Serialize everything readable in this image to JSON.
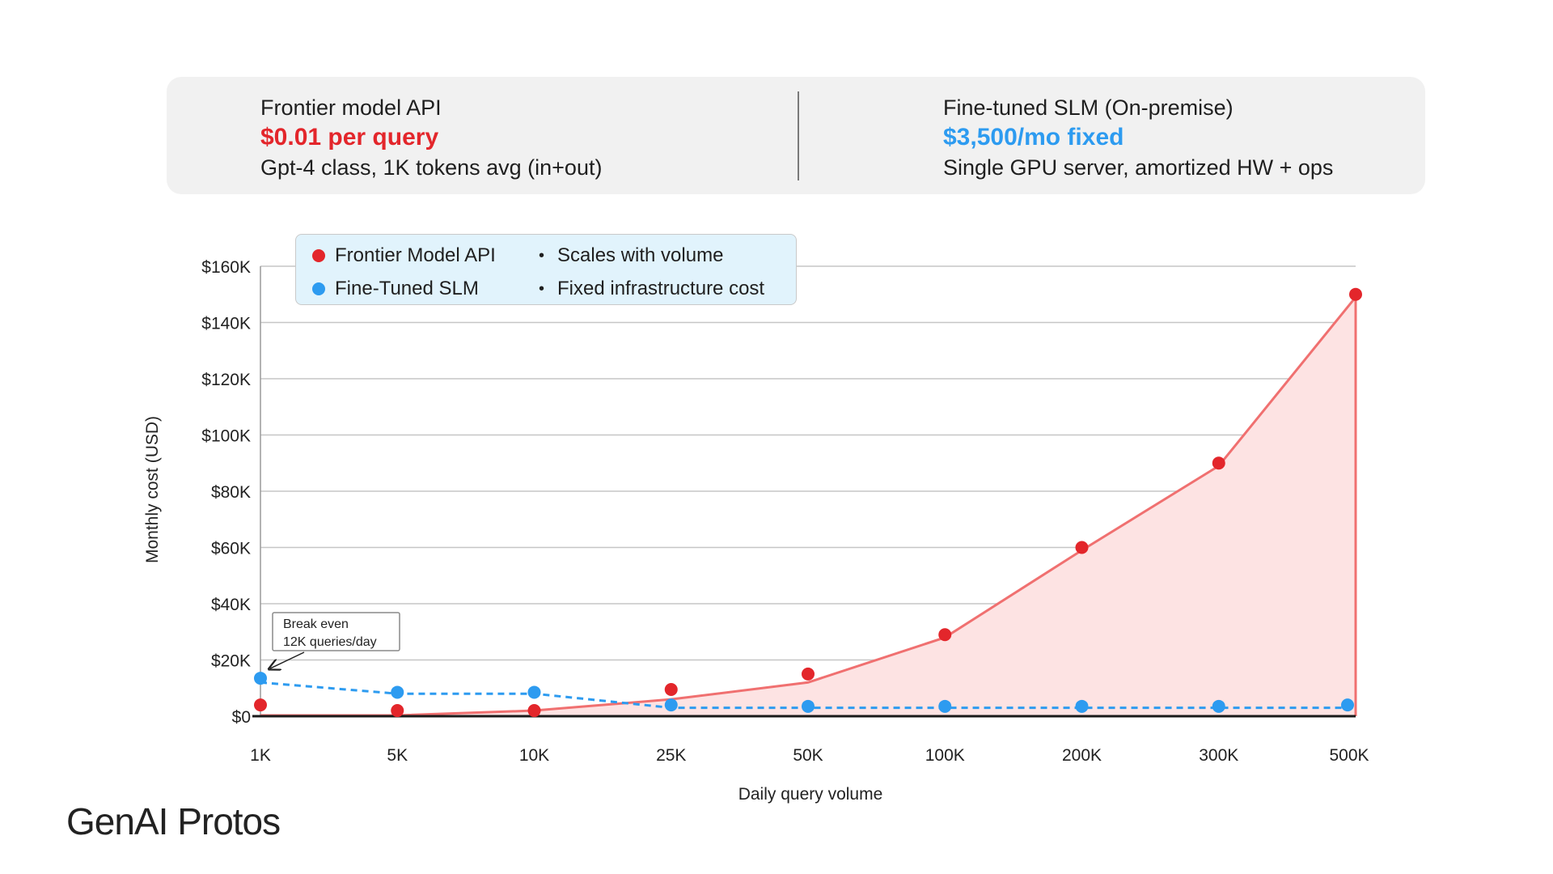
{
  "info_panel": {
    "left": {
      "title": "Frontier model API",
      "price": "$0.01 per query",
      "desc": "Gpt-4 class, 1K tokens avg (in+out)"
    },
    "right": {
      "title": "Fine-tuned SLM (On-premise)",
      "price": "$3,500/mo fixed",
      "desc": "Single GPU server, amortized HW + ops"
    }
  },
  "legend": {
    "items": [
      {
        "label": "Frontier Model API",
        "note": "Scales with volume",
        "color": "#e3262b"
      },
      {
        "label": "Fine-Tuned SLM",
        "note": "Fixed infrastructure cost",
        "color": "#2d9bf0"
      }
    ],
    "bullet": "•"
  },
  "chart_data": {
    "type": "line",
    "xlabel": "Daily query volume",
    "ylabel": "Monthly cost (USD)",
    "categories": [
      "1K",
      "5K",
      "10K",
      "25K",
      "50K",
      "100K",
      "200K",
      "300K",
      "500K"
    ],
    "y_ticks": [
      0,
      20000,
      40000,
      60000,
      80000,
      100000,
      120000,
      140000,
      160000
    ],
    "y_tick_labels": [
      "$0",
      "$20K",
      "$40K",
      "$60K",
      "$80K",
      "$100K",
      "$120K",
      "$140K",
      "$160K"
    ],
    "ylim": [
      0,
      160000
    ],
    "grid": true,
    "legend_position": "top-left",
    "series": [
      {
        "name": "Frontier Model API",
        "color": "#e3262b",
        "line_color": "#f07070",
        "fill": "#fde3e3",
        "line_values": [
          300,
          300,
          2000,
          6000,
          12000,
          28000,
          59000,
          89000,
          149000
        ],
        "point_values": [
          4000,
          2000,
          2000,
          9500,
          15000,
          29000,
          60000,
          90000,
          150000
        ]
      },
      {
        "name": "Fine-Tuned SLM",
        "color": "#2d9bf0",
        "line_values": [
          12000,
          8000,
          8000,
          3000,
          3000,
          3000,
          3000,
          3000,
          3000
        ],
        "point_values": [
          13500,
          8500,
          8500,
          4000,
          3500,
          3500,
          3500,
          3500,
          4000
        ]
      }
    ],
    "annotation": {
      "lines": [
        "Break even",
        "12K queries/day"
      ],
      "target_category": "1K",
      "target_value": 13500
    }
  },
  "logo": "GenAI Protos"
}
